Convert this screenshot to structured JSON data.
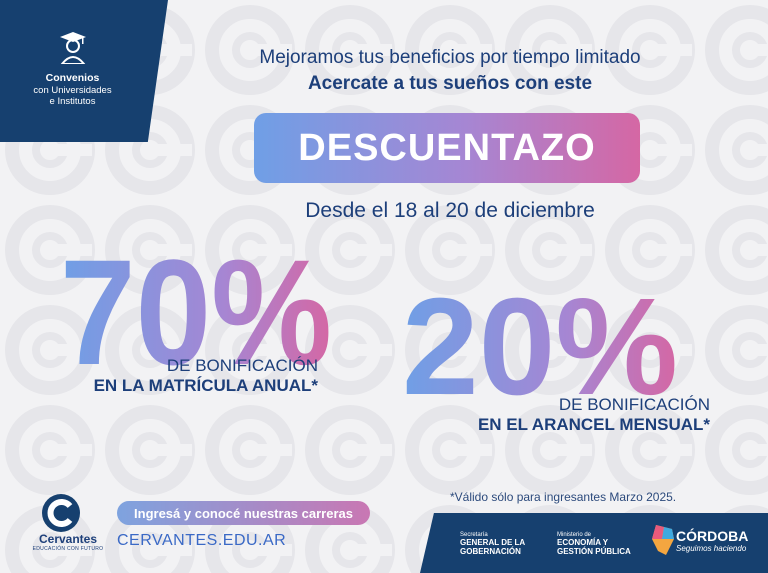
{
  "badge": {
    "title": "Convenios",
    "line2": "con Universidades",
    "line3": "e Institutos",
    "icon": "graduate-icon"
  },
  "headline": {
    "line1": "Mejoramos tus beneficios por tiempo limitado",
    "line2": "Acercate a tus sueños con este"
  },
  "pill_text": "DESCUENTAZO",
  "dates": "Desde el 18 al 20 de diciembre",
  "offer1": {
    "number": "70%",
    "line1": "DE BONIFICACIÓN",
    "line2": "EN LA MATRÍCULA ANUAL*"
  },
  "offer2": {
    "number": "20%",
    "line1": "DE BONIFICACIÓN",
    "line2": "EN EL ARANCEL MENSUAL*"
  },
  "note": "*Válido sólo para ingresantes Marzo 2025.",
  "brand": {
    "name": "Cervantes",
    "tagline": "EDUCACIÓN CON FUTURO",
    "icon": "cervantes-logo-icon"
  },
  "cta": "Ingresá y conocé nuestras carreras",
  "url": "CERVANTES.EDU.AR",
  "gov": [
    {
      "small": "Secretaría",
      "main1": "GENERAL DE LA",
      "main2": "GOBERNACIÓN"
    },
    {
      "small": "Ministerio de",
      "main1": "ECONOMÍA Y",
      "main2": "GESTIÓN PÚBLICA"
    }
  ],
  "cordoba": {
    "name": "CÓRDOBA",
    "tagline": "Seguimos haciendo"
  },
  "colors": {
    "navy": "#16406f",
    "text": "#1d3f7a",
    "grad_start": "#6f9fe6",
    "grad_end": "#d567a4"
  }
}
